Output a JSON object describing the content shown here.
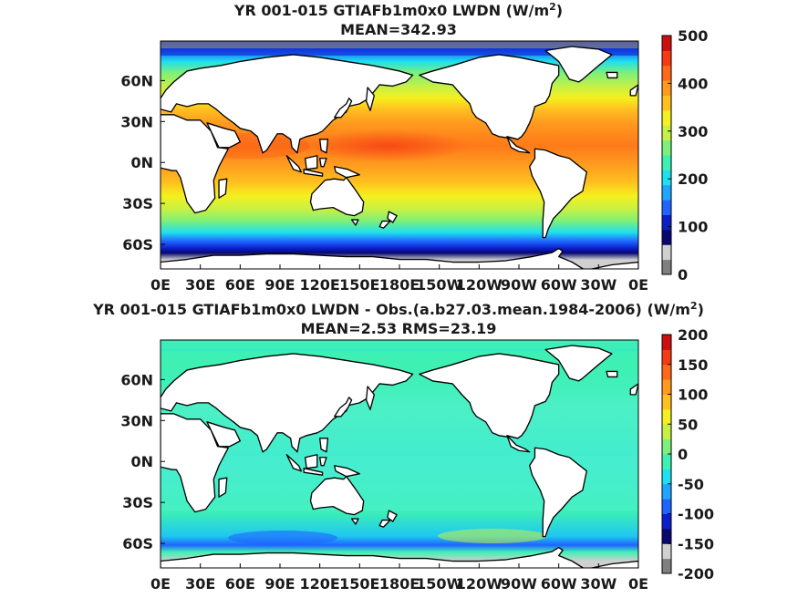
{
  "chart_data": [
    {
      "type": "heatmap",
      "title": "YR 001-015 GTIAFb1m0x0 LWDN (W/m",
      "title_sup": "2",
      "title_end": ")",
      "subtitle": "MEAN=342.93",
      "x_ticks": [
        "0E",
        "30E",
        "60E",
        "90E",
        "120E",
        "150E",
        "180E",
        "150W",
        "120W",
        "90W",
        "60W",
        "30W",
        "0E"
      ],
      "y_ticks": [
        "60N",
        "30N",
        "0N",
        "30S",
        "60S"
      ],
      "y_tick_lat": [
        60,
        30,
        0,
        -30,
        -60
      ],
      "lat_range": [
        -78,
        89
      ],
      "lon_range": [
        0,
        360
      ],
      "colorbar_ticks": [
        "500",
        "400",
        "300",
        "200",
        "100",
        "0"
      ],
      "colorbar_range": [
        0,
        500
      ],
      "colorbar_colors": [
        "#7f7f7f",
        "#d0d0d0",
        "#08086e",
        "#0a1fc8",
        "#1f64ff",
        "#1fa6ff",
        "#1fe0ee",
        "#3ef0b4",
        "#7cf07a",
        "#c6f046",
        "#f5f01f",
        "#ffc01f",
        "#ff9a1f",
        "#ff6a1a",
        "#f53a14",
        "#cc0f0f"
      ],
      "map_description_values": {
        "tropical_max": 420,
        "subtropical": 380,
        "midlatitude": 300,
        "southern_ocean": 250,
        "polar": 150
      }
    },
    {
      "type": "heatmap",
      "title": "YR 001-015 GTIAFb1m0x0 LWDN - Obs.(a.b27.03.mean.1984-2006) (W/m",
      "title_sup": "2",
      "title_end": ")",
      "subtitle": "MEAN=2.53 RMS=23.19",
      "x_ticks": [
        "0E",
        "30E",
        "60E",
        "90E",
        "120E",
        "150E",
        "180E",
        "150W",
        "120W",
        "90W",
        "60W",
        "30W",
        "0E"
      ],
      "y_ticks": [
        "60N",
        "30N",
        "0N",
        "30S",
        "60S"
      ],
      "y_tick_lat": [
        60,
        30,
        0,
        -30,
        -60
      ],
      "lat_range": [
        -78,
        89
      ],
      "lon_range": [
        0,
        360
      ],
      "colorbar_ticks": [
        "200",
        "150",
        "100",
        "50",
        "0",
        "-50",
        "-100",
        "-150",
        "-200"
      ],
      "colorbar_range": [
        -200,
        200
      ],
      "colorbar_colors": [
        "#7f7f7f",
        "#d0d0d0",
        "#08086e",
        "#0a1fc8",
        "#1f64ff",
        "#1fa6ff",
        "#1fe0ee",
        "#3ef0b4",
        "#7cf07a",
        "#c6f046",
        "#f5f01f",
        "#ffc01f",
        "#ff9a1f",
        "#ff6a1a",
        "#f53a14",
        "#cc0f0f"
      ]
    }
  ]
}
